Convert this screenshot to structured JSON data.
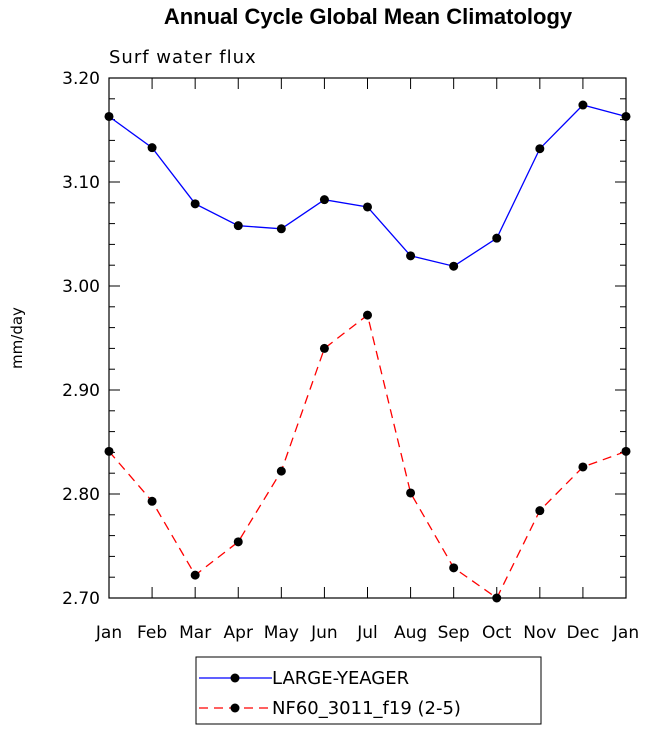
{
  "chart_data": {
    "type": "line",
    "title": "Annual Cycle Global Mean Climatology",
    "subtitle": "Surf water flux",
    "ylabel": "mm/day",
    "xlabel": "",
    "categories": [
      "Jan",
      "Feb",
      "Mar",
      "Apr",
      "May",
      "Jun",
      "Jul",
      "Aug",
      "Sep",
      "Oct",
      "Nov",
      "Dec",
      "Jan"
    ],
    "ylim": [
      2.7,
      3.2
    ],
    "yticks": [
      "2.70",
      "2.80",
      "2.90",
      "3.00",
      "3.10",
      "3.20"
    ],
    "grid": false,
    "legend_position": "bottom-center",
    "series": [
      {
        "name": "LARGE-YEAGER",
        "color": "#0000ff",
        "line_style": "solid",
        "marker": "filled-circle",
        "values": [
          3.163,
          3.133,
          3.079,
          3.058,
          3.055,
          3.083,
          3.076,
          3.029,
          3.019,
          3.046,
          3.132,
          3.174,
          3.163
        ]
      },
      {
        "name": "NF60_3011_f19 (2-5)",
        "color": "#ff0000",
        "line_style": "dashed",
        "marker": "filled-circle",
        "values": [
          2.841,
          2.793,
          2.722,
          2.754,
          2.822,
          2.94,
          2.972,
          2.801,
          2.729,
          2.7,
          2.784,
          2.826,
          2.841
        ]
      }
    ]
  }
}
